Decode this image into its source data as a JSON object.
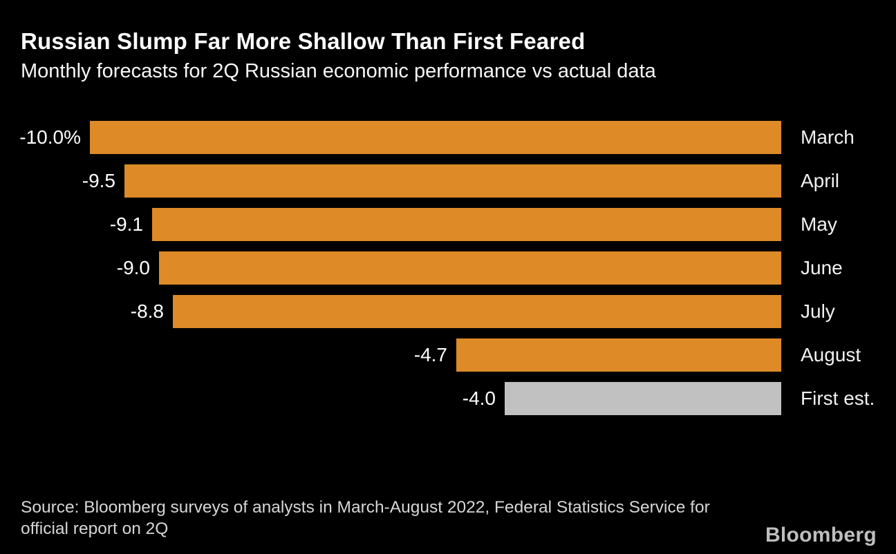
{
  "header": {
    "title": "Russian Slump Far More Shallow Than First Feared",
    "subtitle": "Monthly forecasts for 2Q Russian economic performance vs actual data"
  },
  "chart_data": {
    "type": "bar",
    "orientation": "horizontal",
    "title": "Russian Slump Far More Shallow Than First Feared",
    "subtitle": "Monthly forecasts for 2Q Russian economic performance vs actual data",
    "categories": [
      "March",
      "April",
      "May",
      "June",
      "July",
      "August",
      "First est."
    ],
    "values": [
      -10.0,
      -9.5,
      -9.1,
      -9.0,
      -8.8,
      -4.7,
      -4.0
    ],
    "value_labels": [
      "-10.0%",
      "-9.5",
      "-9.1",
      "-9.0",
      "-8.8",
      "-4.7",
      "-4.0"
    ],
    "unit": "percent",
    "xlim": [
      -10.0,
      0
    ],
    "grid": "off",
    "legend": "none",
    "bar_colors": [
      "#dd8a27",
      "#dd8a27",
      "#dd8a27",
      "#dd8a27",
      "#dd8a27",
      "#dd8a27",
      "#c1c1c1"
    ],
    "series_meaning": {
      "forecast_bars": "March through August analyst survey forecasts",
      "actual_bar": "First est. official first estimate"
    }
  },
  "footer": {
    "source": "Source: Bloomberg surveys of analysts in March-August 2022, Federal Statistics Service for official report on 2Q",
    "logo": "Bloomberg"
  },
  "colors": {
    "background": "#000000",
    "forecast_bar": "#dd8a27",
    "actual_bar": "#c1c1c1",
    "title_text": "#ffffff",
    "value_text": "#ffffff",
    "category_text": "#f1f1f1",
    "source_text": "#d6d6d6",
    "logo_text": "#bfbfbf"
  }
}
